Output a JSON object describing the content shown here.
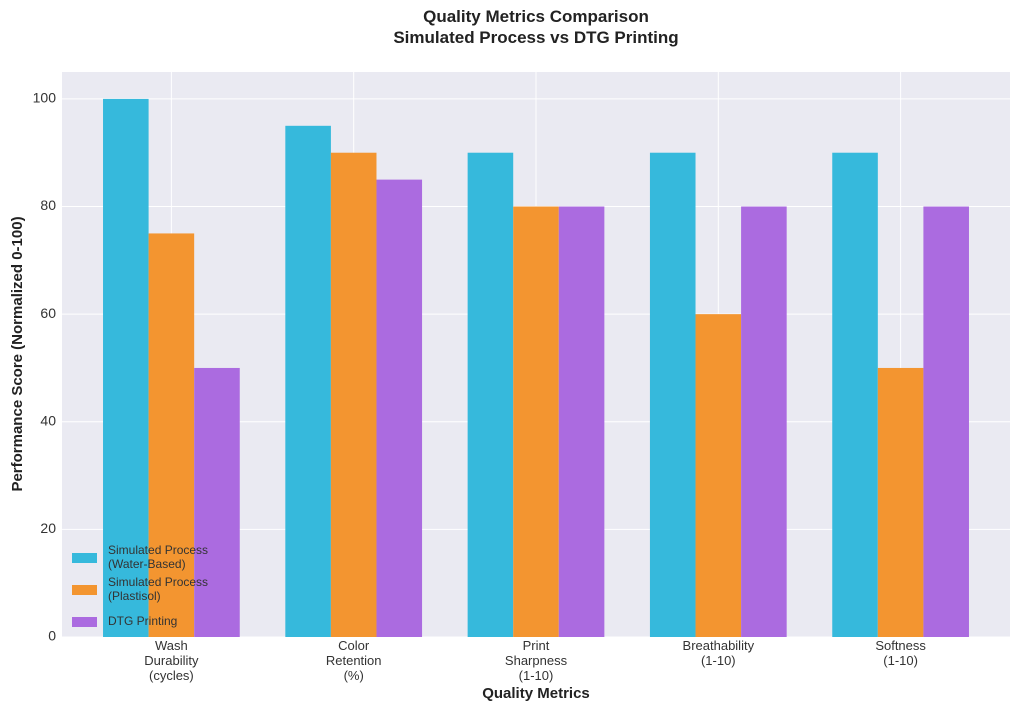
{
  "chart_data": {
    "type": "bar",
    "title": "Quality Metrics Comparison\nSimulated Process vs DTG Printing",
    "x_label": "Quality Metrics",
    "y_label": "Performance Score (Normalized 0-100)",
    "categories": [
      "Wash\nDurability\n(cycles)",
      "Color\nRetention\n(%)",
      "Print\nSharpness\n(1-10)",
      "Breathability\n(1-10)",
      "Softness\n(1-10)"
    ],
    "series": [
      {
        "name": "Simulated Process\n(Water-Based)",
        "color": "#36b9dc",
        "values": [
          100,
          95,
          90,
          90,
          90
        ]
      },
      {
        "name": "Simulated Process\n(Plastisol)",
        "color": "#f39530",
        "values": [
          75,
          90,
          80,
          60,
          50
        ]
      },
      {
        "name": "DTG Printing",
        "color": "#ab6be0",
        "values": [
          50,
          85,
          80,
          80,
          80
        ]
      }
    ],
    "ylim": [
      0,
      105
    ],
    "yticks": [
      0,
      20,
      40,
      60,
      80,
      100
    ],
    "grid": true,
    "legend": "lower left"
  }
}
